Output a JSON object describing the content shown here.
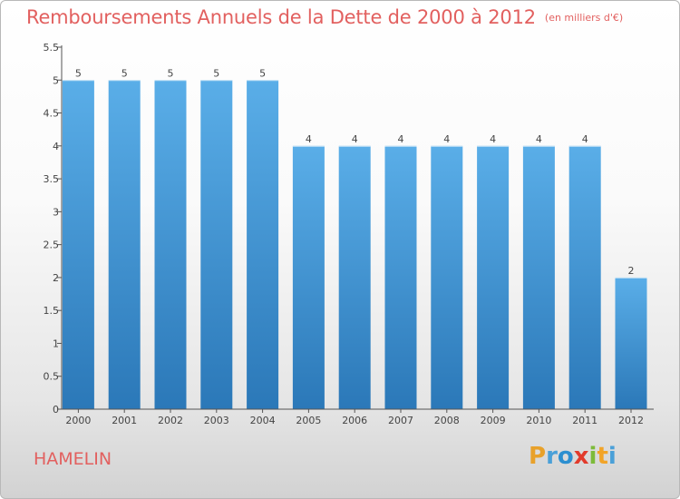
{
  "header": {
    "title": "Remboursements Annuels de la Dette de 2000 à 2012",
    "unit": "(en milliers d'€)"
  },
  "commune": "HAMELIN",
  "logo": {
    "letters": [
      "P",
      "r",
      "o",
      "x",
      "i",
      "t",
      "i"
    ],
    "colors": [
      "#e8a12a",
      "#4aa0d8",
      "#2c8fd0",
      "#e23b2c",
      "#7dbb3a",
      "#f2a428",
      "#4aa0d8"
    ]
  },
  "chart_data": {
    "type": "bar",
    "title": "Remboursements Annuels de la Dette de 2000 à 2012",
    "subtitle": "(en milliers d'€)",
    "categories": [
      "2000",
      "2001",
      "2002",
      "2003",
      "2004",
      "2005",
      "2006",
      "2007",
      "2008",
      "2009",
      "2010",
      "2011",
      "2012"
    ],
    "values": [
      5,
      5,
      5,
      5,
      5,
      4,
      4,
      4,
      4,
      4,
      4,
      4,
      2
    ],
    "data_labels": [
      "5",
      "5",
      "5",
      "5",
      "5",
      "4",
      "4",
      "4",
      "4",
      "4",
      "4",
      "4",
      "2"
    ],
    "ylim": [
      0,
      5.5
    ],
    "yticks": [
      "0",
      "0.5",
      "1",
      "1.5",
      "2",
      "2.5",
      "3",
      "3.5",
      "4",
      "4.5",
      "5",
      "5.5"
    ],
    "grid": false,
    "colors": {
      "bar_top": "#5aaee8",
      "bar_bottom": "#2b78b8",
      "axis": "#555555"
    }
  }
}
